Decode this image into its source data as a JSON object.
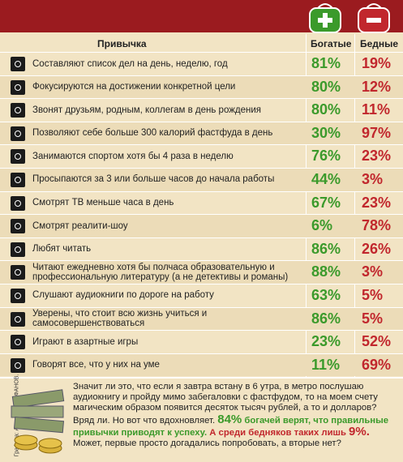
{
  "header": {
    "habit": "Привычка",
    "rich": "Богатые",
    "poor": "Бедные"
  },
  "rows": [
    {
      "habit": "Составляют список дел на день, неделю, год",
      "rich": "81%",
      "poor": "19%"
    },
    {
      "habit": "Фокусируются на достижении конкретной цели",
      "rich": "80%",
      "poor": "12%"
    },
    {
      "habit": "Звонят друзьям, родным, коллегам в день рождения",
      "rich": "80%",
      "poor": "11%"
    },
    {
      "habit": "Позволяют себе больше 300 калорий фастфуда в день",
      "rich": "30%",
      "poor": "97%"
    },
    {
      "habit": "Занимаются спортом хотя бы 4 раза в неделю",
      "rich": "76%",
      "poor": "23%"
    },
    {
      "habit": "Просыпаются за 3 или больше часов до начала работы",
      "rich": "44%",
      "poor": "3%"
    },
    {
      "habit": "Смотрят ТВ меньше часа в день",
      "rich": "67%",
      "poor": "23%"
    },
    {
      "habit": "Смотрят реалити-шоу",
      "rich": "6%",
      "poor": "78%"
    },
    {
      "habit": "Любят читать",
      "rich": "86%",
      "poor": "26%"
    },
    {
      "habit": "Читают ежедневно хотя бы полчаса образовательную и профессиональную литературу (а не детективы и романы)",
      "rich": "88%",
      "poor": "3%"
    },
    {
      "habit": "Слушают аудиокниги по дороге на работу",
      "rich": "63%",
      "poor": "5%"
    },
    {
      "habit": "Уверены, что стоит всю жизнь учиться и самосовершенствоваться",
      "rich": "86%",
      "poor": "5%"
    },
    {
      "habit": "Играют в азартные игры",
      "rich": "23%",
      "poor": "52%"
    },
    {
      "habit": "Говорят все, что у них на уме",
      "rich": "11%",
      "poor": "69%"
    }
  ],
  "footer": {
    "credit": "Графика: Алексей СТЕФАНОВ.",
    "text": "Значит ли это, что если я завтра встану в 6 утра, в метро послушаю аудиокнигу и пройду мимо забегаловки с фастфудом, то на моем счету магическим образом появится десяток тысяч рублей, а то и долларов? Вряд ли. Но вот что вдохновляет.",
    "rich_pct": "84%",
    "rich_text": "богачей верят, что правильные привычки приводят к успеху.",
    "poor_text": "А среди бедняков таких лишь",
    "poor_pct": "9%.",
    "closing": "Может, первые просто догадались попробовать, а вторые нет?"
  }
}
